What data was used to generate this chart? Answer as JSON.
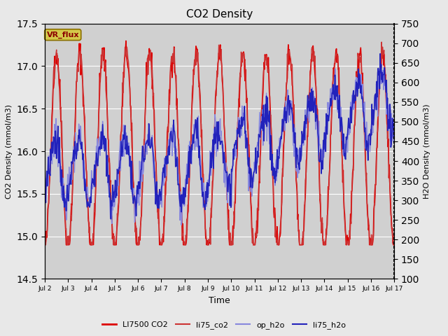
{
  "title": "CO2 Density",
  "xlabel": "Time",
  "ylabel_left": "CO2 Density (mmol/m3)",
  "ylabel_right": "H2O Density (mmol/m3)",
  "ylim_left": [
    14.5,
    17.5
  ],
  "ylim_right": [
    100,
    750
  ],
  "yticks_left": [
    14.5,
    15.0,
    15.5,
    16.0,
    16.5,
    17.0,
    17.5
  ],
  "yticks_right": [
    100,
    150,
    200,
    250,
    300,
    350,
    400,
    450,
    500,
    550,
    600,
    650,
    700,
    750
  ],
  "xtick_labels": [
    "Jul 2",
    "Jul 3",
    "Jul 4",
    "Jul 5",
    "Jul 6",
    "Jul 7",
    "Jul 8",
    "Jul 9",
    "Jul 10",
    "Jul 11",
    "Jul 12",
    "Jul 13",
    "Jul 14",
    "Jul 15",
    "Jul 16",
    "Jul 17"
  ],
  "vr_flux_label": "VR_flux",
  "vr_flux_color": "#d4c84a",
  "vr_flux_text_color": "#8b0000",
  "fig_bg_color": "#e8e8e8",
  "plot_bg_color": "#d0d0d0",
  "line_colors": {
    "LI7500_CO2": "#dd0000",
    "li75_co2": "#cc3333",
    "op_h2o": "#8888dd",
    "li75_h2o": "#2222bb"
  },
  "line_widths": {
    "LI7500_CO2": 1.2,
    "li75_co2": 1.0,
    "op_h2o": 1.0,
    "li75_h2o": 1.2
  },
  "legend_labels": [
    "LI7500 CO2",
    "li75_co2",
    "op_h2o",
    "li75_h2o"
  ]
}
